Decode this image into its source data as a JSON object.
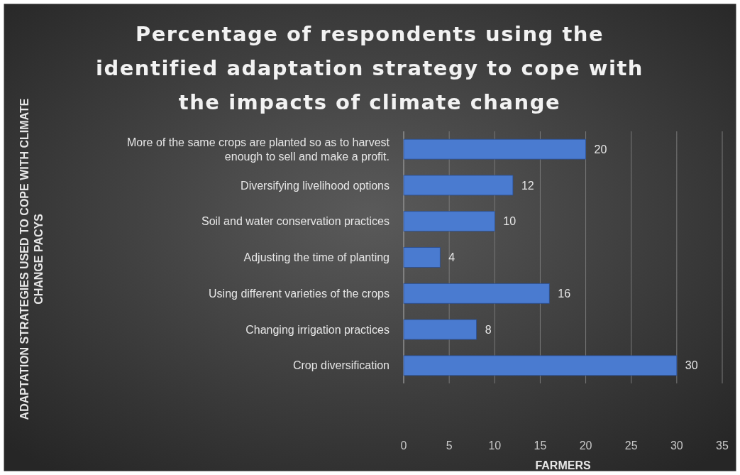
{
  "chart_data": {
    "type": "bar",
    "orientation": "horizontal",
    "title": "Percentage of respondents using the identified adaptation strategy to cope with the impacts of climate change",
    "xlabel": "FARMERS",
    "annotations": [
      "ADAPTATION STRATEGIES USED TO COPE WITH CLIMATE CHANGE PACYS"
    ],
    "categories": [
      "More of the same crops are planted so as to harvest enough to sell and make a profit.",
      "Diversifying livelihood options",
      "Soil and water conservation practices",
      "Adjusting the time of planting",
      "Using different varieties of the crops",
      "Changing irrigation practices",
      "Crop diversification"
    ],
    "values": [
      20,
      12,
      10,
      4,
      16,
      8,
      30
    ],
    "color": "#4a7bd0",
    "xlim": [
      0,
      35
    ],
    "xticks": [
      0,
      5,
      10,
      15,
      20,
      25,
      30,
      35
    ],
    "grid": "x",
    "data_labels": true
  }
}
